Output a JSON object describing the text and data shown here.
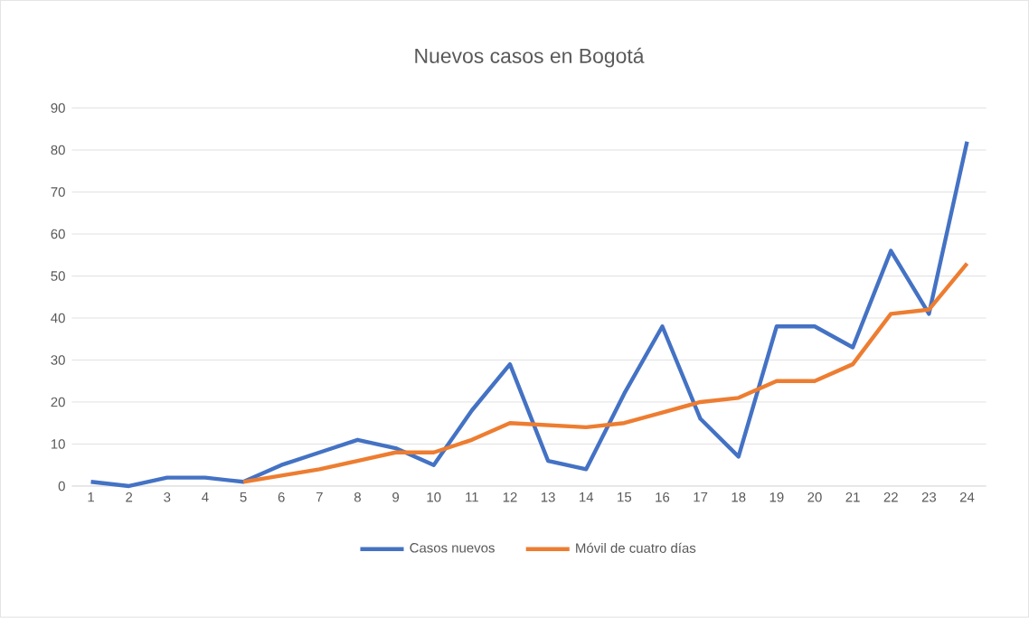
{
  "chart_data": {
    "type": "line",
    "title": "Nuevos casos en Bogotá",
    "categories": [
      "1",
      "2",
      "3",
      "4",
      "5",
      "6",
      "7",
      "8",
      "9",
      "10",
      "11",
      "12",
      "13",
      "14",
      "15",
      "16",
      "17",
      "18",
      "19",
      "20",
      "21",
      "22",
      "23",
      "24"
    ],
    "series": [
      {
        "name": "Casos nuevos",
        "color": "#4472c4",
        "values": [
          1,
          0,
          2,
          2,
          1,
          5,
          8,
          11,
          9,
          5,
          18,
          29,
          6,
          4,
          22,
          38,
          16,
          7,
          38,
          38,
          33,
          56,
          41,
          82
        ]
      },
      {
        "name": "Móvil de cuatro días",
        "color": "#ed7d31",
        "values": [
          null,
          null,
          null,
          null,
          1,
          2.5,
          4,
          6,
          8,
          8,
          11,
          15,
          14.5,
          14,
          15,
          17.5,
          20,
          21,
          25,
          25,
          29,
          41,
          42,
          53
        ]
      }
    ],
    "ylim": [
      0,
      90
    ],
    "yticks": [
      0,
      10,
      20,
      30,
      40,
      50,
      60,
      70,
      80,
      90
    ],
    "grid": "y",
    "legend": "bottom",
    "marker": "none",
    "line_style": "solid"
  }
}
